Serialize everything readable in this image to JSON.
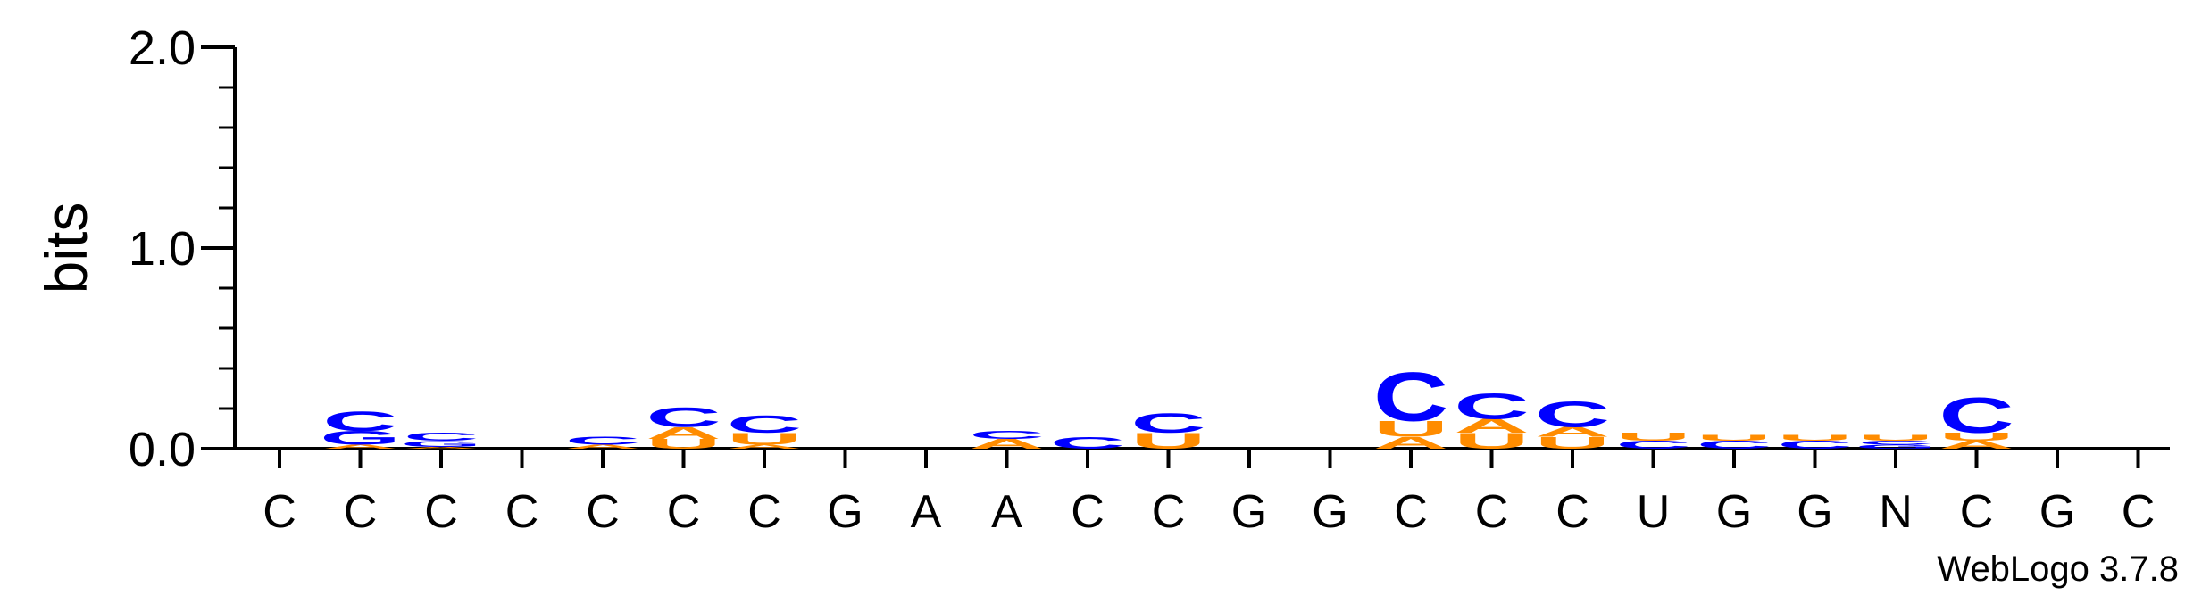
{
  "chart_data": {
    "type": "sequence-logo",
    "ylabel": "bits",
    "ylim": [
      0,
      2.0
    ],
    "yticks": [
      "0.0",
      "1.0",
      "2.0"
    ],
    "credit": "WebLogo 3.7.8",
    "colors": {
      "C": "#0000ff",
      "G": "#0000ff",
      "A": "#ff8c00",
      "U": "#ff8c00"
    },
    "positions": [
      "C",
      "C",
      "C",
      "C",
      "C",
      "C",
      "C",
      "G",
      "A",
      "A",
      "C",
      "C",
      "G",
      "G",
      "C",
      "C",
      "C",
      "U",
      "G",
      "G",
      "N",
      "C",
      "G",
      "C"
    ],
    "stacks": [
      [],
      [
        {
          "letter": "A",
          "bits": 0.02
        },
        {
          "letter": "G",
          "bits": 0.07
        },
        {
          "letter": "C",
          "bits": 0.1
        }
      ],
      [
        {
          "letter": "A",
          "bits": 0.01
        },
        {
          "letter": "G",
          "bits": 0.03
        },
        {
          "letter": "C",
          "bits": 0.04
        }
      ],
      [],
      [
        {
          "letter": "A",
          "bits": 0.02
        },
        {
          "letter": "C",
          "bits": 0.04
        }
      ],
      [
        {
          "letter": "U",
          "bits": 0.05
        },
        {
          "letter": "A",
          "bits": 0.06
        },
        {
          "letter": "C",
          "bits": 0.1
        }
      ],
      [
        {
          "letter": "A",
          "bits": 0.02
        },
        {
          "letter": "U",
          "bits": 0.06
        },
        {
          "letter": "C",
          "bits": 0.09
        }
      ],
      [],
      [],
      [
        {
          "letter": "A",
          "bits": 0.05
        },
        {
          "letter": "C",
          "bits": 0.04
        }
      ],
      [
        {
          "letter": "C",
          "bits": 0.06
        }
      ],
      [
        {
          "letter": "U",
          "bits": 0.08
        },
        {
          "letter": "C",
          "bits": 0.1
        }
      ],
      [],
      [],
      [
        {
          "letter": "A",
          "bits": 0.06
        },
        {
          "letter": "U",
          "bits": 0.08
        },
        {
          "letter": "C",
          "bits": 0.25
        }
      ],
      [
        {
          "letter": "U",
          "bits": 0.08
        },
        {
          "letter": "A",
          "bits": 0.07
        },
        {
          "letter": "C",
          "bits": 0.13
        }
      ],
      [
        {
          "letter": "U",
          "bits": 0.06
        },
        {
          "letter": "A",
          "bits": 0.05
        },
        {
          "letter": "C",
          "bits": 0.13
        }
      ],
      [
        {
          "letter": "C",
          "bits": 0.04
        },
        {
          "letter": "U",
          "bits": 0.04
        }
      ],
      [
        {
          "letter": "C",
          "bits": 0.04
        },
        {
          "letter": "U",
          "bits": 0.03
        }
      ],
      [
        {
          "letter": "C",
          "bits": 0.04
        },
        {
          "letter": "U",
          "bits": 0.03
        }
      ],
      [
        {
          "letter": "G",
          "bits": 0.02
        },
        {
          "letter": "C",
          "bits": 0.02
        },
        {
          "letter": "U",
          "bits": 0.03
        }
      ],
      [
        {
          "letter": "A",
          "bits": 0.04
        },
        {
          "letter": "U",
          "bits": 0.04
        },
        {
          "letter": "C",
          "bits": 0.18
        }
      ],
      [],
      []
    ]
  }
}
